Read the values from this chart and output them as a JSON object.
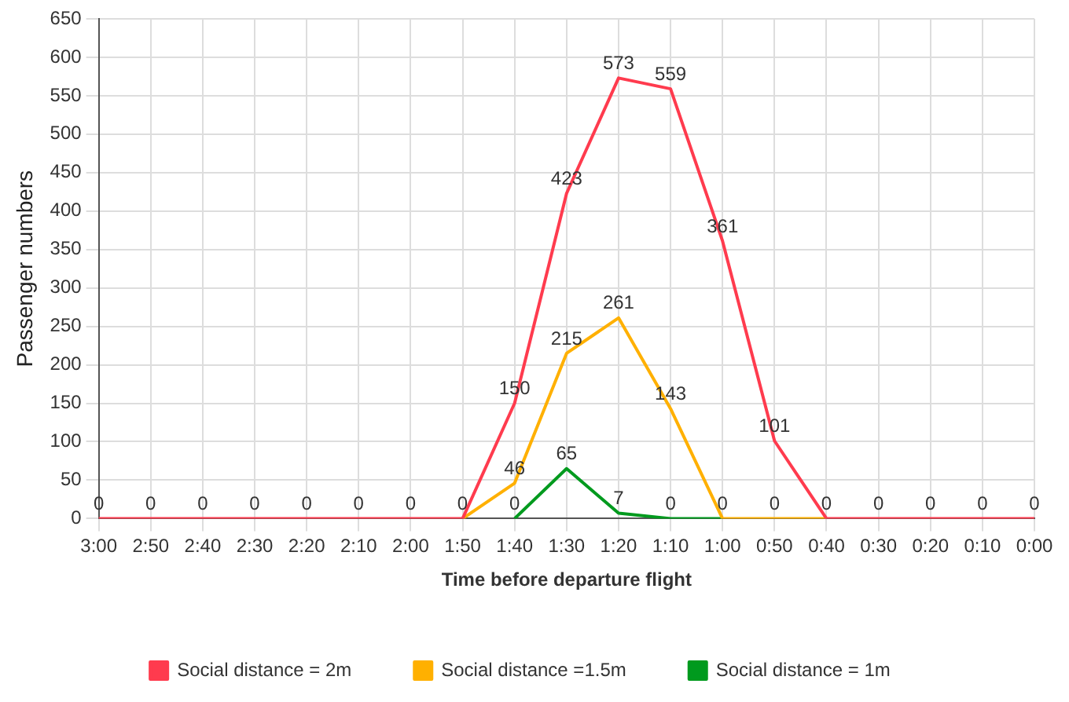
{
  "chart_data": {
    "type": "line",
    "xlabel": "Time before departure flight",
    "ylabel": "Passenger numbers",
    "categories": [
      "3:00",
      "2:50",
      "2:40",
      "2:30",
      "2:20",
      "2:10",
      "2:00",
      "1:50",
      "1:40",
      "1:30",
      "1:20",
      "1:10",
      "1:00",
      "0:50",
      "0:40",
      "0:30",
      "0:20",
      "0:10",
      "0:00"
    ],
    "series": [
      {
        "name": "Social distance = 2m",
        "color": "#ff3b4e",
        "values": [
          0,
          0,
          0,
          0,
          0,
          0,
          0,
          0,
          150,
          423,
          573,
          559,
          361,
          101,
          0,
          0,
          0,
          0,
          0
        ],
        "value_labels": [
          "0",
          "0",
          "0",
          "0",
          "0",
          "0",
          "0",
          "0",
          "150",
          "423",
          "573",
          "559",
          "361",
          "101",
          "0",
          "0",
          "0",
          "0",
          "0"
        ]
      },
      {
        "name": "Social distance =1.5m",
        "color": "#ffb000",
        "values": [
          null,
          null,
          null,
          null,
          null,
          null,
          null,
          0,
          46,
          215,
          261,
          143,
          0,
          0,
          0,
          null,
          null,
          null,
          null
        ],
        "value_labels": [
          null,
          null,
          null,
          null,
          null,
          null,
          null,
          null,
          "46",
          "215",
          "261",
          "143",
          "0",
          "0",
          null,
          null,
          null,
          null,
          null
        ]
      },
      {
        "name": "Social distance = 1m",
        "color": "#009a1e",
        "values": [
          null,
          null,
          null,
          null,
          null,
          null,
          null,
          null,
          0,
          65,
          7,
          0,
          0,
          null,
          null,
          null,
          null,
          null,
          null
        ],
        "value_labels": [
          null,
          null,
          null,
          null,
          null,
          null,
          null,
          null,
          "0",
          "65",
          "7",
          "0",
          null,
          null,
          null,
          null,
          null,
          null,
          null
        ]
      }
    ],
    "ylim": [
      0,
      650
    ],
    "yticks": [
      0,
      50,
      100,
      150,
      200,
      250,
      300,
      350,
      400,
      450,
      500,
      550,
      600,
      650
    ],
    "grid": true,
    "legend": "bottom",
    "marker": "none",
    "line_style": "solid"
  }
}
